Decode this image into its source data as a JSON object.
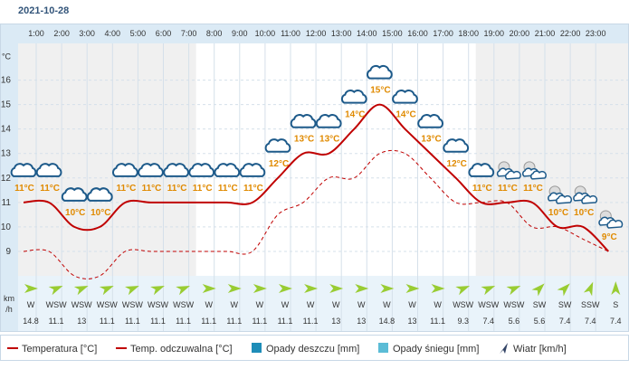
{
  "date": "2021-10-28",
  "chart_data": {
    "type": "line",
    "hours": [
      "1:00",
      "2:00",
      "3:00",
      "4:00",
      "5:00",
      "6:00",
      "7:00",
      "8:00",
      "9:00",
      "10:00",
      "11:00",
      "12:00",
      "13:00",
      "14:00",
      "15:00",
      "16:00",
      "17:00",
      "18:00",
      "19:00",
      "20:00",
      "21:00",
      "22:00",
      "23:00"
    ],
    "temperature": [
      11,
      11,
      10,
      10,
      11,
      11,
      11,
      11,
      11,
      11,
      12,
      13,
      13,
      14,
      15,
      14,
      13,
      12,
      11,
      11,
      11,
      10,
      10,
      9
    ],
    "temperature_labels": [
      "11°C",
      "11°C",
      "10°C",
      "10°C",
      "11°C",
      "11°C",
      "11°C",
      "11°C",
      "11°C",
      "11°C",
      "12°C",
      "13°C",
      "13°C",
      "14°C",
      "15°C",
      "14°C",
      "13°C",
      "12°C",
      "11°C",
      "11°C",
      "11°C",
      "10°C",
      "10°C",
      "9°C"
    ],
    "feels_like": [
      9,
      9,
      8,
      8,
      9,
      9,
      9,
      9,
      9,
      9,
      10.5,
      11,
      12,
      12,
      13,
      13,
      12,
      11,
      11,
      11,
      10,
      10,
      9.5,
      9
    ],
    "weather_icons": [
      "cloud",
      "cloud",
      "cloud",
      "cloud",
      "cloud",
      "cloud",
      "cloud",
      "cloud",
      "cloud",
      "cloud",
      "cloud",
      "cloud",
      "cloud",
      "cloud",
      "cloud",
      "cloud",
      "cloud",
      "cloud",
      "cloud",
      "moon-cloud",
      "moon-cloud",
      "moon-cloud",
      "moon-cloud",
      "moon-cloud"
    ],
    "wind_dir": [
      "W",
      "WSW",
      "WSW",
      "WSW",
      "WSW",
      "WSW",
      "WSW",
      "W",
      "W",
      "W",
      "W",
      "W",
      "W",
      "W",
      "W",
      "W",
      "W",
      "WSW",
      "WSW",
      "WSW",
      "SW",
      "SW",
      "SSW",
      "S"
    ],
    "wind_speed": [
      "14.8",
      "11.1",
      "13",
      "11.1",
      "11.1",
      "11.1",
      "11.1",
      "11.1",
      "11.1",
      "11.1",
      "11.1",
      "11.1",
      "13",
      "13",
      "14.8",
      "13",
      "11.1",
      "9.3",
      "7.4",
      "5.6",
      "5.6",
      "7.4",
      "7.4",
      "7.4"
    ],
    "y_unit": "°C",
    "y_ticks": [
      9,
      10,
      11,
      12,
      13,
      14,
      15,
      16
    ],
    "ylim": [
      8,
      17.5
    ],
    "wind_unit_lines": [
      "km",
      "/h"
    ],
    "legend": [
      {
        "label": "Temperatura [°C]",
        "color": "#c00000",
        "style": "solid"
      },
      {
        "label": "Temp. odczuwalna [°C]",
        "color": "#c00000",
        "style": "dashed"
      },
      {
        "label": "Opady deszczu [mm]",
        "color": "#1e8db8",
        "style": "box"
      },
      {
        "label": "Opady śniegu [mm]",
        "color": "#5bbcd6",
        "style": "box"
      },
      {
        "label": "Wiatr [km/h]",
        "color": "#334466",
        "style": "arrow"
      }
    ],
    "colors": {
      "temperature_line": "#c00000",
      "label_color": "#e08a00",
      "header_bg": "#dbeaf5",
      "night_bg": "#f0f0f0",
      "day_bg": "#ffffff",
      "wind_bg": "#e9f3fa",
      "arrow": "#99cc33",
      "grid": "#d5e0ea"
    }
  }
}
